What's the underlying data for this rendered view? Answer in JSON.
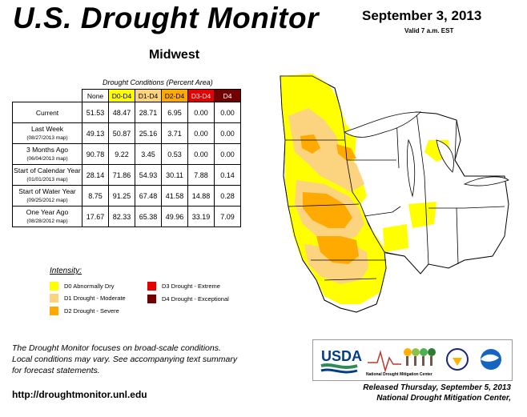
{
  "header": {
    "title": "U.S. Drought Monitor",
    "region": "Midwest",
    "date": "September 3, 2013",
    "valid": "Valid 7 a.m. EST"
  },
  "table": {
    "caption": "Drought Conditions (Percent Area)",
    "columns": [
      {
        "label": "None",
        "color": "#ffffff",
        "text_color": "#000000"
      },
      {
        "label": "D0-D4",
        "color": "#ffff00",
        "text_color": "#000000"
      },
      {
        "label": "D1-D4",
        "color": "#fcd37f",
        "text_color": "#000000"
      },
      {
        "label": "D2-D4",
        "color": "#ffaa00",
        "text_color": "#000000"
      },
      {
        "label": "D3-D4",
        "color": "#e60000",
        "text_color": "#ffffff"
      },
      {
        "label": "D4",
        "color": "#730000",
        "text_color": "#ffffff"
      }
    ],
    "rows": [
      {
        "label": "Current",
        "sub": "",
        "values": [
          "51.53",
          "48.47",
          "28.71",
          "6.95",
          "0.00",
          "0.00"
        ]
      },
      {
        "label": "Last Week",
        "sub": "(08/27/2013 map)",
        "values": [
          "49.13",
          "50.87",
          "25.16",
          "3.71",
          "0.00",
          "0.00"
        ]
      },
      {
        "label": "3 Months Ago",
        "sub": "(06/04/2013 map)",
        "values": [
          "90.78",
          "9.22",
          "3.45",
          "0.53",
          "0.00",
          "0.00"
        ]
      },
      {
        "label": "Start of Calendar Year",
        "sub": "(01/01/2013 map)",
        "values": [
          "28.14",
          "71.86",
          "54.93",
          "30.11",
          "7.88",
          "0.14"
        ]
      },
      {
        "label": "Start of Water Year",
        "sub": "(09/25/2012 map)",
        "values": [
          "8.75",
          "91.25",
          "67.48",
          "41.58",
          "14.88",
          "0.28"
        ]
      },
      {
        "label": "One Year Ago",
        "sub": "(08/28/2012 map)",
        "values": [
          "17.67",
          "82.33",
          "65.38",
          "49.96",
          "33.19",
          "7.09"
        ]
      }
    ]
  },
  "legend": {
    "title": "Intensity:",
    "items": [
      {
        "label": "D0 Abnormally Dry",
        "color": "#ffff00"
      },
      {
        "label": "D1 Drought - Moderate",
        "color": "#fcd37f"
      },
      {
        "label": "D2 Drought - Severe",
        "color": "#ffaa00"
      },
      {
        "label": "D3 Drought - Extreme",
        "color": "#e60000"
      },
      {
        "label": "D4 Drought - Exceptional",
        "color": "#730000"
      }
    ]
  },
  "footnote": [
    "The Drought Monitor focuses on broad-scale conditions.",
    "Local conditions may vary. See accompanying text summary",
    "for forecast statements."
  ],
  "url": "http://droughtmonitor.unl.edu",
  "logos": {
    "usda": "USDA",
    "ndmc": "National Drought Mitigation Center"
  },
  "released": [
    "Released Thursday, September 5, 2013",
    "National Drought Mitigation Center,"
  ]
}
